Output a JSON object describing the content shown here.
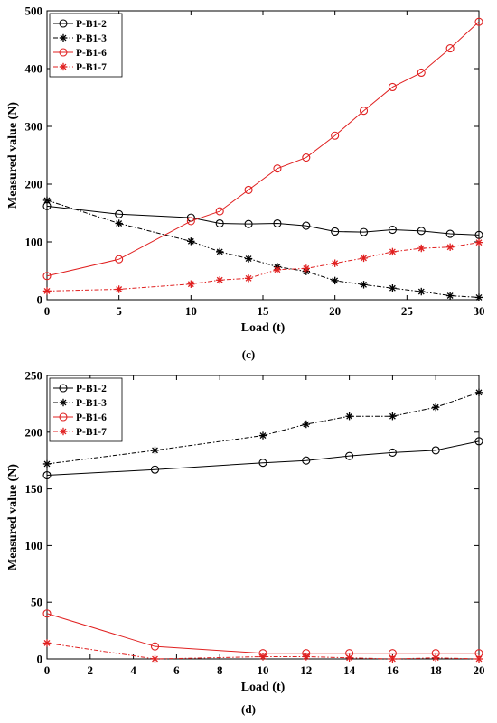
{
  "chart_data": [
    {
      "type": "line",
      "panel_label": "(c)",
      "xlabel": "Load  (t)",
      "ylabel": "Measured value  (N)",
      "xlim": [
        0,
        30
      ],
      "ylim": [
        0,
        500
      ],
      "xticks": [
        0,
        5,
        10,
        15,
        20,
        25,
        30
      ],
      "yticks": [
        0,
        100,
        200,
        300,
        400,
        500
      ],
      "legend_position": "top-left",
      "series": [
        {
          "name": "P-B1-2",
          "color": "#000000",
          "marker": "circle",
          "dash": "solid",
          "x": [
            0,
            5,
            10,
            12,
            14,
            16,
            18,
            20,
            22,
            24,
            26,
            28,
            30
          ],
          "y": [
            162,
            148,
            142,
            132,
            131,
            132,
            128,
            118,
            117,
            121,
            119,
            114,
            112
          ]
        },
        {
          "name": "P-B1-3",
          "color": "#000000",
          "marker": "asterisk",
          "dash": "dashdot",
          "x": [
            0,
            5,
            10,
            12,
            14,
            16,
            18,
            20,
            22,
            24,
            26,
            28,
            30
          ],
          "y": [
            172,
            132,
            101,
            83,
            71,
            57,
            49,
            33,
            26,
            20,
            14,
            7,
            4
          ]
        },
        {
          "name": "P-B1-6",
          "color": "#e02020",
          "marker": "circle",
          "dash": "solid",
          "x": [
            0,
            5,
            10,
            12,
            14,
            16,
            18,
            20,
            22,
            24,
            26,
            28,
            30
          ],
          "y": [
            41,
            70,
            136,
            153,
            190,
            227,
            246,
            284,
            327,
            368,
            393,
            435,
            481
          ]
        },
        {
          "name": "P-B1-7",
          "color": "#e02020",
          "marker": "asterisk",
          "dash": "dashdot",
          "x": [
            0,
            5,
            10,
            12,
            14,
            16,
            18,
            20,
            22,
            24,
            26,
            28,
            30
          ],
          "y": [
            15,
            18,
            27,
            34,
            37,
            52,
            54,
            63,
            72,
            83,
            89,
            91,
            99
          ]
        }
      ]
    },
    {
      "type": "line",
      "panel_label": "(d)",
      "xlabel": "Load  (t)",
      "ylabel": "Measured value  (N)",
      "xlim": [
        0,
        20
      ],
      "ylim": [
        0,
        250
      ],
      "xticks": [
        0,
        2,
        4,
        6,
        8,
        10,
        12,
        14,
        16,
        18,
        20
      ],
      "yticks": [
        0,
        50,
        100,
        150,
        200,
        250
      ],
      "legend_position": "top-left",
      "series": [
        {
          "name": "P-B1-2",
          "color": "#000000",
          "marker": "circle",
          "dash": "solid",
          "x": [
            0,
            5,
            10,
            12,
            14,
            16,
            18,
            20
          ],
          "y": [
            162,
            167,
            173,
            175,
            179,
            182,
            184,
            192
          ]
        },
        {
          "name": "P-B1-3",
          "color": "#000000",
          "marker": "asterisk",
          "dash": "dashdot",
          "x": [
            0,
            5,
            10,
            12,
            14,
            16,
            18,
            20
          ],
          "y": [
            172,
            184,
            197,
            207,
            214,
            214,
            222,
            235
          ]
        },
        {
          "name": "P-B1-6",
          "color": "#e02020",
          "marker": "circle",
          "dash": "solid",
          "x": [
            0,
            5,
            10,
            12,
            14,
            16,
            18,
            20
          ],
          "y": [
            40,
            11,
            5,
            5,
            5,
            5,
            5,
            5
          ]
        },
        {
          "name": "P-B1-7",
          "color": "#e02020",
          "marker": "asterisk",
          "dash": "dashdot",
          "x": [
            0,
            5,
            10,
            12,
            14,
            16,
            18,
            20
          ],
          "y": [
            14,
            0,
            2,
            2,
            1,
            0,
            1,
            0
          ]
        }
      ]
    }
  ]
}
